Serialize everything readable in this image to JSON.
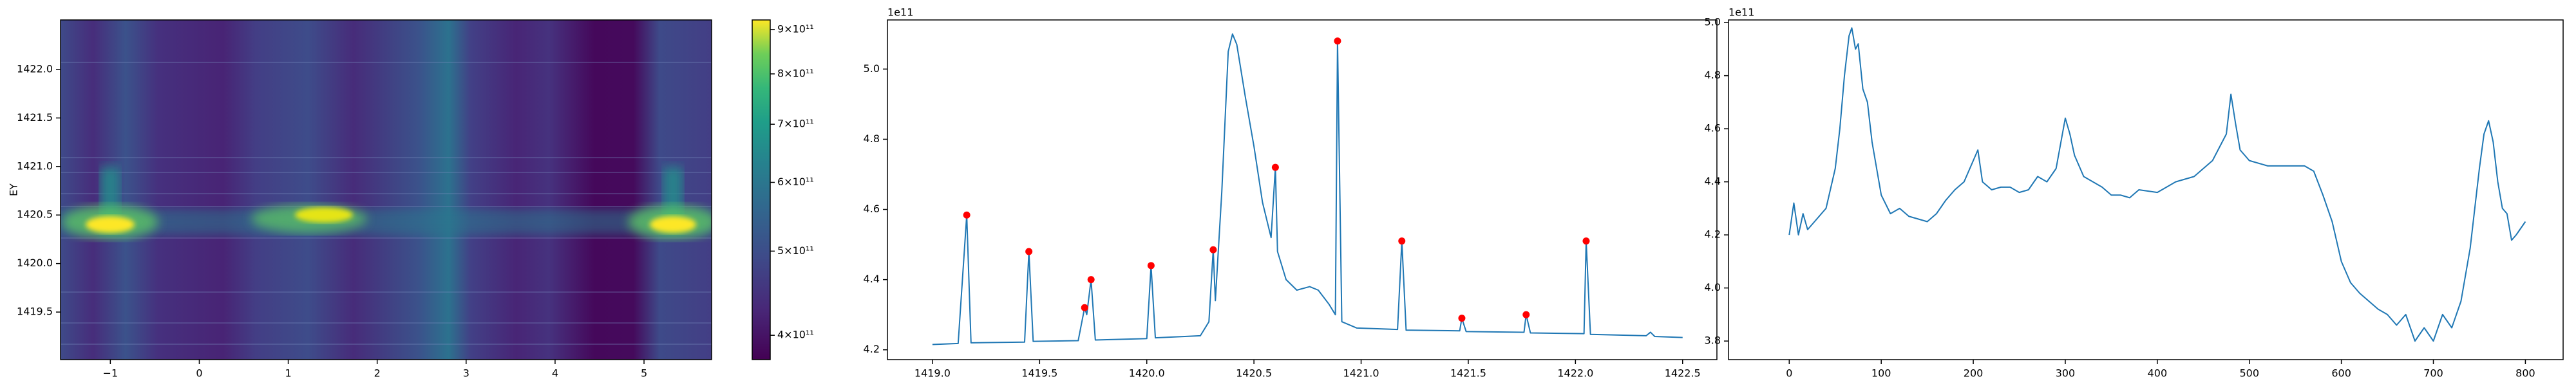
{
  "chart_data": [
    {
      "type": "heatmap",
      "ylabel": "EY",
      "xlim": [
        -1.56,
        5.76
      ],
      "ylim": [
        1419.01,
        1422.51
      ],
      "xticks": [
        {
          "value": -1,
          "label": "−1"
        },
        0,
        1,
        2,
        3,
        4,
        5
      ],
      "yticks": [
        1419.5,
        {
          "value": 1420,
          "label": "1420.0"
        },
        1420.5,
        {
          "value": 1421,
          "label": "1421.0"
        },
        1421.5,
        {
          "value": 1422,
          "label": "1422.0"
        }
      ],
      "colorbar": {
        "scale": "log",
        "lim": [
          375000000000,
          923000000000
        ],
        "ticks": [
          {
            "value": 400000000000,
            "label": "4×10¹¹"
          },
          {
            "value": 500000000000,
            "label": "5×10¹¹"
          },
          {
            "value": 600000000000,
            "label": "6×10¹¹"
          },
          {
            "value": 700000000000,
            "label": "7×10¹¹"
          },
          {
            "value": 800000000000,
            "label": "8×10¹¹"
          },
          {
            "value": 900000000000,
            "label": "9×10¹¹"
          }
        ]
      }
    },
    {
      "type": "line",
      "y_offset_label": "1e11",
      "xlim": [
        1418.79,
        1422.66
      ],
      "ylim": [
        4.172,
        5.14
      ],
      "xticks": [
        {
          "value": 1419,
          "label": "1419.0"
        },
        1419.5,
        {
          "value": 1420,
          "label": "1420.0"
        },
        1420.5,
        {
          "value": 1421,
          "label": "1421.0"
        },
        1421.5,
        {
          "value": 1422,
          "label": "1422.0"
        },
        1422.5
      ],
      "yticks": [
        4.2,
        4.4,
        4.6,
        4.8,
        {
          "value": 5,
          "label": "5.0"
        }
      ],
      "series": [
        {
          "type": "line",
          "color": "#1f77b4",
          "x": [
            1419.0,
            1419.12,
            1419.16,
            1419.18,
            1419.43,
            1419.45,
            1419.47,
            1419.68,
            1419.71,
            1419.72,
            1419.74,
            1419.76,
            1420.0,
            1420.02,
            1420.04,
            1420.25,
            1420.29,
            1420.31,
            1420.32,
            1420.35,
            1420.38,
            1420.4,
            1420.42,
            1420.46,
            1420.5,
            1420.54,
            1420.58,
            1420.6,
            1420.61,
            1420.65,
            1420.7,
            1420.76,
            1420.8,
            1420.85,
            1420.88,
            1420.89,
            1420.91,
            1420.98,
            1421.17,
            1421.19,
            1421.21,
            1421.46,
            1421.47,
            1421.49,
            1421.76,
            1421.77,
            1421.79,
            1422.04,
            1422.05,
            1422.07,
            1422.33,
            1422.35,
            1422.37,
            1422.5
          ],
          "values": [
            4.215,
            4.218,
            4.584,
            4.22,
            4.222,
            4.48,
            4.224,
            4.226,
            4.32,
            4.3,
            4.4,
            4.228,
            4.232,
            4.44,
            4.234,
            4.24,
            4.28,
            4.485,
            4.34,
            4.65,
            5.05,
            5.1,
            5.07,
            4.92,
            4.78,
            4.62,
            4.52,
            4.72,
            4.48,
            4.4,
            4.37,
            4.38,
            4.37,
            4.33,
            4.3,
            5.08,
            4.28,
            4.262,
            4.258,
            4.51,
            4.256,
            4.254,
            4.29,
            4.252,
            4.25,
            4.3,
            4.248,
            4.246,
            4.51,
            4.244,
            4.24,
            4.25,
            4.238,
            4.235
          ]
        },
        {
          "type": "scatter",
          "color": "red",
          "x": [
            1419.16,
            1419.45,
            1419.71,
            1419.74,
            1420.02,
            1420.31,
            1420.6,
            1420.89,
            1421.19,
            1421.47,
            1421.77,
            1422.05
          ],
          "values": [
            4.584,
            4.48,
            4.32,
            4.4,
            4.44,
            4.485,
            4.72,
            5.08,
            4.51,
            4.29,
            4.3,
            4.51
          ]
        }
      ]
    },
    {
      "type": "line",
      "y_offset_label": "1e11",
      "xlim": [
        -66,
        841
      ],
      "ylim": [
        3.73,
        5.01
      ],
      "xticks": [
        0,
        100,
        200,
        300,
        400,
        500,
        600,
        700,
        800
      ],
      "yticks": [
        3.8,
        {
          "value": 4,
          "label": "4.0"
        },
        4.2,
        4.4,
        4.6,
        4.8,
        {
          "value": 5,
          "label": "5.0"
        }
      ],
      "series": [
        {
          "type": "line",
          "color": "#1f77b4",
          "x": [
            0,
            5,
            10,
            15,
            20,
            30,
            40,
            50,
            55,
            60,
            65,
            68,
            72,
            75,
            80,
            85,
            90,
            95,
            100,
            110,
            120,
            130,
            140,
            150,
            160,
            170,
            180,
            190,
            200,
            205,
            210,
            220,
            230,
            240,
            250,
            260,
            270,
            280,
            290,
            300,
            305,
            310,
            320,
            330,
            340,
            350,
            360,
            370,
            380,
            400,
            420,
            440,
            460,
            475,
            480,
            485,
            490,
            500,
            520,
            540,
            560,
            570,
            580,
            590,
            600,
            610,
            620,
            630,
            640,
            650,
            660,
            670,
            680,
            690,
            700,
            710,
            720,
            730,
            740,
            750,
            755,
            760,
            765,
            770,
            775,
            780,
            785,
            790,
            800
          ],
          "values": [
            4.2,
            4.32,
            4.2,
            4.28,
            4.22,
            4.26,
            4.3,
            4.45,
            4.6,
            4.8,
            4.95,
            4.98,
            4.9,
            4.92,
            4.75,
            4.7,
            4.55,
            4.45,
            4.35,
            4.28,
            4.3,
            4.27,
            4.26,
            4.25,
            4.28,
            4.33,
            4.37,
            4.4,
            4.48,
            4.52,
            4.4,
            4.37,
            4.38,
            4.38,
            4.36,
            4.37,
            4.42,
            4.4,
            4.45,
            4.64,
            4.58,
            4.5,
            4.42,
            4.4,
            4.38,
            4.35,
            4.35,
            4.34,
            4.37,
            4.36,
            4.4,
            4.42,
            4.48,
            4.58,
            4.73,
            4.62,
            4.52,
            4.48,
            4.46,
            4.46,
            4.46,
            4.44,
            4.35,
            4.25,
            4.1,
            4.02,
            3.98,
            3.95,
            3.92,
            3.9,
            3.86,
            3.9,
            3.8,
            3.85,
            3.8,
            3.9,
            3.85,
            3.95,
            4.15,
            4.45,
            4.58,
            4.63,
            4.55,
            4.4,
            4.3,
            4.28,
            4.18,
            4.2,
            4.25
          ]
        }
      ]
    }
  ]
}
